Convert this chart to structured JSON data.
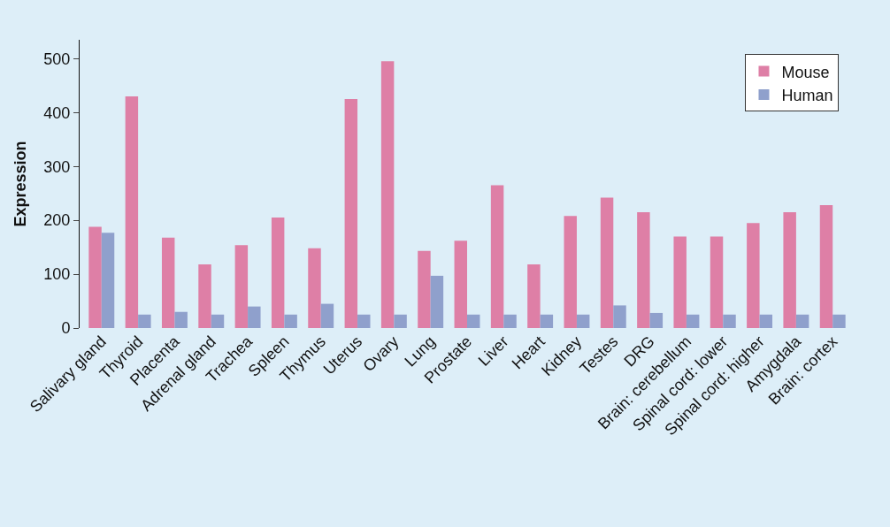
{
  "chart_data": {
    "type": "bar",
    "ylabel": "Expression",
    "categories": [
      "Salivary gland",
      "Thyroid",
      "Placenta",
      "Adrenal gland",
      "Trachea",
      "Spleen",
      "Thymus",
      "Uterus",
      "Ovary",
      "Lung",
      "Prostate",
      "Liver",
      "Heart",
      "Kidney",
      "Testes",
      "DRG",
      "Brain: cerebellum",
      "Spinal cord: lower",
      "Spinal cord: higher",
      "Amygdala",
      "Brain: cortex"
    ],
    "series": [
      {
        "name": "Mouse",
        "color": "#de7fa6",
        "values": [
          188,
          430,
          168,
          118,
          154,
          205,
          148,
          425,
          495,
          143,
          162,
          265,
          118,
          208,
          242,
          215,
          170,
          170,
          195,
          215,
          228
        ]
      },
      {
        "name": "Human",
        "color": "#8fa0cc",
        "values": [
          177,
          25,
          30,
          25,
          40,
          25,
          45,
          25,
          25,
          97,
          25,
          25,
          25,
          25,
          42,
          28,
          25,
          25,
          25,
          25,
          25
        ]
      }
    ],
    "ylim": [
      0,
      535
    ],
    "yticks": [
      0,
      100,
      200,
      300,
      400,
      500
    ],
    "grid": false,
    "legend": "top right"
  }
}
